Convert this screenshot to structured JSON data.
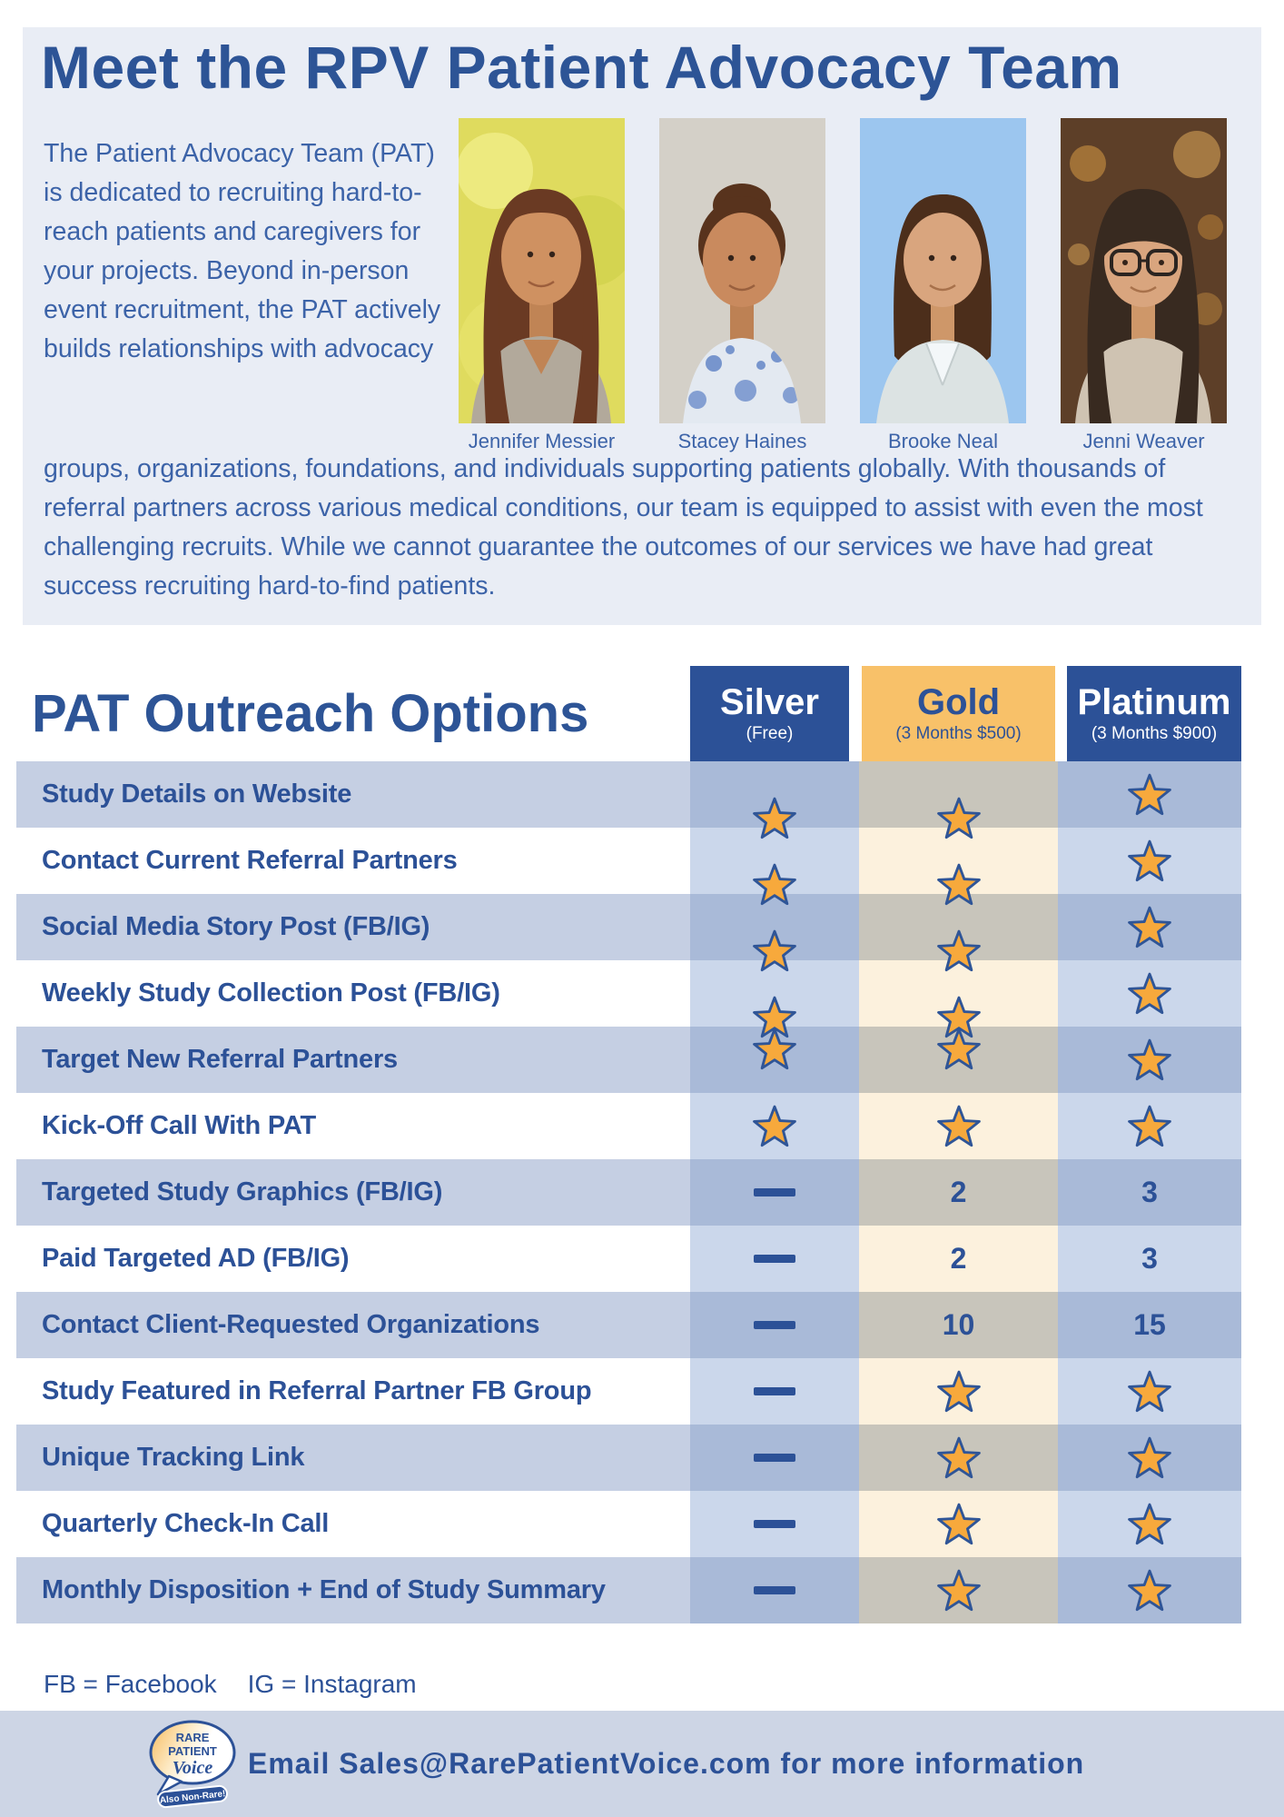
{
  "header": {
    "title": "Meet the RPV Patient Advocacy Team",
    "intro_part1": "The Patient Advocacy Team (PAT) is dedicated to recruiting hard-to-reach patients and caregivers for your projects. Beyond in-person event recruitment, the PAT actively builds relationships with advocacy",
    "intro_part2": "groups, organizations, foundations, and individuals supporting patients globally. With thousands of referral partners across various medical conditions, our team is equipped to assist with even the most challenging recruits. While we cannot guarantee the outcomes of our services we have had great success recruiting hard-to-find patients.",
    "team": [
      {
        "name": "Jennifer Messier"
      },
      {
        "name": "Stacey Haines"
      },
      {
        "name": "Brooke Neal"
      },
      {
        "name": "Jenni Weaver"
      }
    ]
  },
  "table": {
    "title": "PAT Outreach Options",
    "tiers": [
      {
        "id": "silver",
        "name": "Silver",
        "subtitle": "(Free)"
      },
      {
        "id": "gold",
        "name": "Gold",
        "subtitle": "(3 Months $500)"
      },
      {
        "id": "platinum",
        "name": "Platinum",
        "subtitle": "(3 Months $900)"
      }
    ],
    "rows": [
      {
        "label": "Study Details on Website",
        "silver": "star",
        "gold": "star",
        "platinum": "star"
      },
      {
        "label": "Contact Current Referral Partners",
        "silver": "star",
        "gold": "star",
        "platinum": "star"
      },
      {
        "label": "Social Media Story Post (FB/IG)",
        "silver": "star",
        "gold": "star",
        "platinum": "star"
      },
      {
        "label": "Weekly Study Collection Post (FB/IG)",
        "silver": "star",
        "gold": "star",
        "platinum": "star"
      },
      {
        "label": "Target New Referral Partners",
        "silver": "star",
        "gold": "star",
        "platinum": "star"
      },
      {
        "label": "Kick-Off Call With PAT",
        "silver": "star",
        "gold": "star",
        "platinum": "star"
      },
      {
        "label": "Targeted Study Graphics (FB/IG)",
        "silver": "dash",
        "gold": "2",
        "platinum": "3"
      },
      {
        "label": "Paid Targeted AD (FB/IG)",
        "silver": "dash",
        "gold": "2",
        "platinum": "3"
      },
      {
        "label": "Contact Client-Requested Organizations",
        "silver": "dash",
        "gold": "10",
        "platinum": "15"
      },
      {
        "label": "Study Featured in Referral Partner FB Group",
        "silver": "dash",
        "gold": "star",
        "platinum": "star"
      },
      {
        "label": "Unique Tracking Link",
        "silver": "dash",
        "gold": "star",
        "platinum": "star"
      },
      {
        "label": "Quarterly Check-In Call",
        "silver": "dash",
        "gold": "star",
        "platinum": "star"
      },
      {
        "label": "Monthly Disposition + End of Study Summary",
        "silver": "dash",
        "gold": "star",
        "platinum": "star"
      }
    ]
  },
  "legend": {
    "fb": "FB = Facebook",
    "ig": "IG = Instagram"
  },
  "footer": {
    "email_line": "Email Sales@RarePatientVoice.com for more information",
    "logo": {
      "line1": "RARE",
      "line2": "PATIENT",
      "line3": "Voice",
      "tagline": "Also Non-Rare!"
    }
  },
  "colors": {
    "navy": "#2C5197",
    "title_blue": "#2D5496",
    "body_blue": "#3C63A8",
    "gold_header": "#F8C169",
    "panel_bg": "#E9EDF5",
    "row_shade": "#C5CFE3",
    "silver_col_shade": "#A9BAD8",
    "silver_col_light": "#CBD7EB",
    "gold_col_shade": "#C8C5BB",
    "gold_col_light": "#FCF1DD",
    "footer_bg": "#CDD5E5",
    "star_fill": "#F7A93C",
    "star_stroke": "#2F5597"
  },
  "icons": {
    "star": "star-icon",
    "dash": "dash-icon"
  }
}
